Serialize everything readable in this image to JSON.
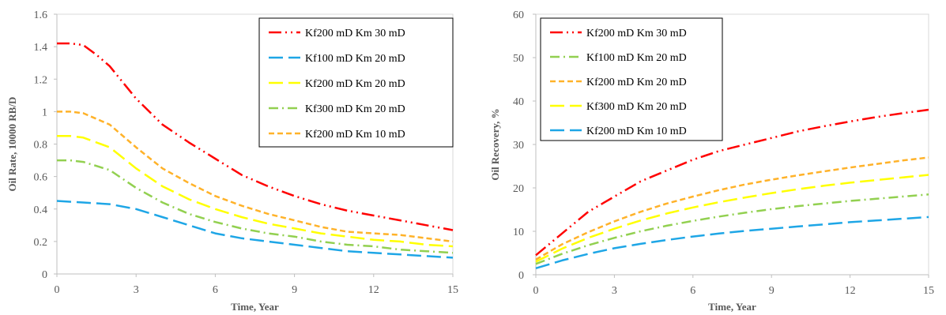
{
  "chart_data": [
    {
      "type": "line",
      "xlabel": "Time, Year",
      "ylabel": "Oil Rate, 10000 RB/D",
      "xlim": [
        0,
        15
      ],
      "ylim": [
        0,
        1.6
      ],
      "xticks": [
        "0",
        "3",
        "6",
        "9",
        "12",
        "15"
      ],
      "yticks": [
        "0",
        "0.2",
        "0.4",
        "0.6",
        "0.8",
        "1",
        "1.2",
        "1.4",
        "1.6"
      ],
      "legend_position": "top-right",
      "grid": false,
      "series": [
        {
          "name": "Kf200 mD Km 30 mD",
          "color": "#ff0000",
          "dash": "dash-dot-dot",
          "x": [
            0,
            0.5,
            1,
            1.5,
            2,
            3,
            4,
            5,
            6,
            7,
            8,
            9,
            10,
            11,
            12,
            13,
            14,
            15
          ],
          "y": [
            1.42,
            1.42,
            1.41,
            1.35,
            1.28,
            1.08,
            0.92,
            0.81,
            0.71,
            0.61,
            0.54,
            0.48,
            0.43,
            0.39,
            0.36,
            0.33,
            0.3,
            0.27
          ]
        },
        {
          "name": "Kf100 mD Km 20 mD",
          "color": "#1ea6e6",
          "dash": "long-dash",
          "x": [
            0,
            1,
            2,
            3,
            4,
            5,
            6,
            7,
            8,
            9,
            10,
            11,
            12,
            13,
            14,
            15
          ],
          "y": [
            0.45,
            0.44,
            0.43,
            0.4,
            0.35,
            0.3,
            0.25,
            0.22,
            0.2,
            0.18,
            0.16,
            0.14,
            0.13,
            0.12,
            0.11,
            0.1
          ]
        },
        {
          "name": "Kf200 mD Km 20 mD",
          "color": "#ffff00",
          "dash": "long-dash",
          "x": [
            0,
            0.5,
            1,
            2,
            3,
            4,
            5,
            6,
            7,
            8,
            9,
            10,
            11,
            12,
            13,
            14,
            15
          ],
          "y": [
            0.85,
            0.85,
            0.84,
            0.78,
            0.65,
            0.54,
            0.46,
            0.4,
            0.35,
            0.31,
            0.28,
            0.25,
            0.23,
            0.21,
            0.2,
            0.18,
            0.17
          ]
        },
        {
          "name": "Kf300 mD Km 20 mD",
          "color": "#92d050",
          "dash": "dash-dot",
          "x": [
            0,
            0.5,
            1,
            2,
            3,
            4,
            5,
            6,
            7,
            8,
            9,
            10,
            11,
            12,
            13,
            14,
            15
          ],
          "y": [
            0.7,
            0.7,
            0.69,
            0.64,
            0.53,
            0.44,
            0.37,
            0.32,
            0.28,
            0.25,
            0.23,
            0.2,
            0.18,
            0.17,
            0.15,
            0.14,
            0.13
          ]
        },
        {
          "name": "Kf200 mD Km 10 mD",
          "color": "#ffb229",
          "dash": "short-dash",
          "x": [
            0,
            0.5,
            1,
            2,
            3,
            4,
            5,
            6,
            7,
            8,
            9,
            10,
            11,
            12,
            13,
            14,
            15
          ],
          "y": [
            1.0,
            1.0,
            0.99,
            0.92,
            0.78,
            0.65,
            0.56,
            0.48,
            0.42,
            0.37,
            0.33,
            0.29,
            0.26,
            0.25,
            0.24,
            0.22,
            0.2
          ]
        }
      ]
    },
    {
      "type": "line",
      "xlabel": "Time, Year",
      "ylabel": "Oil Recovery, %",
      "xlim": [
        0,
        15
      ],
      "ylim": [
        0,
        60
      ],
      "xticks": [
        "0",
        "3",
        "6",
        "9",
        "12",
        "15"
      ],
      "yticks": [
        "0",
        "10",
        "20",
        "30",
        "40",
        "50",
        "60"
      ],
      "legend_position": "top-left",
      "grid": false,
      "series": [
        {
          "name": "Kf200 mD Km 30 mD",
          "color": "#ff0000",
          "dash": "dash-dot-dot",
          "x": [
            0,
            1,
            2,
            3,
            4,
            5,
            6,
            7,
            8,
            9,
            10,
            11,
            12,
            13,
            14,
            15
          ],
          "y": [
            4.5,
            9.5,
            14.5,
            18.0,
            21.5,
            24.0,
            26.5,
            28.5,
            30.0,
            31.5,
            33.0,
            34.2,
            35.3,
            36.3,
            37.2,
            38.0
          ]
        },
        {
          "name": "Kf100 mD Km 20 mD",
          "color": "#92d050",
          "dash": "dash-dot",
          "x": [
            0,
            1,
            2,
            3,
            4,
            5,
            6,
            7,
            8,
            9,
            10,
            11,
            12,
            13,
            14,
            15
          ],
          "y": [
            2.5,
            4.8,
            6.8,
            8.5,
            10.0,
            11.3,
            12.4,
            13.4,
            14.3,
            15.1,
            15.8,
            16.4,
            17.0,
            17.5,
            18.0,
            18.5
          ]
        },
        {
          "name": "Kf200 mD Km 20 mD",
          "color": "#ffb229",
          "dash": "short-dash",
          "x": [
            0,
            1,
            2,
            3,
            4,
            5,
            6,
            7,
            8,
            9,
            10,
            11,
            12,
            13,
            14,
            15
          ],
          "y": [
            3.5,
            7.0,
            9.8,
            12.3,
            14.5,
            16.4,
            18.0,
            19.5,
            20.8,
            21.9,
            22.9,
            23.8,
            24.7,
            25.5,
            26.3,
            27.0
          ]
        },
        {
          "name": "Kf300 mD Km 20 mD",
          "color": "#ffff00",
          "dash": "long-dash",
          "x": [
            0,
            1,
            2,
            3,
            4,
            5,
            6,
            7,
            8,
            9,
            10,
            11,
            12,
            13,
            14,
            15
          ],
          "y": [
            3.0,
            6.0,
            8.5,
            10.6,
            12.5,
            14.1,
            15.5,
            16.7,
            17.8,
            18.8,
            19.7,
            20.5,
            21.2,
            21.8,
            22.4,
            23.0
          ]
        },
        {
          "name": "Kf200 mD Km 10 mD",
          "color": "#1ea6e6",
          "dash": "long-dash",
          "x": [
            0,
            1,
            2,
            3,
            4,
            5,
            6,
            7,
            8,
            9,
            10,
            11,
            12,
            13,
            14,
            15
          ],
          "y": [
            1.5,
            3.3,
            4.8,
            6.1,
            7.1,
            8.0,
            8.8,
            9.5,
            10.1,
            10.6,
            11.1,
            11.6,
            12.1,
            12.5,
            12.9,
            13.3
          ]
        }
      ]
    }
  ]
}
